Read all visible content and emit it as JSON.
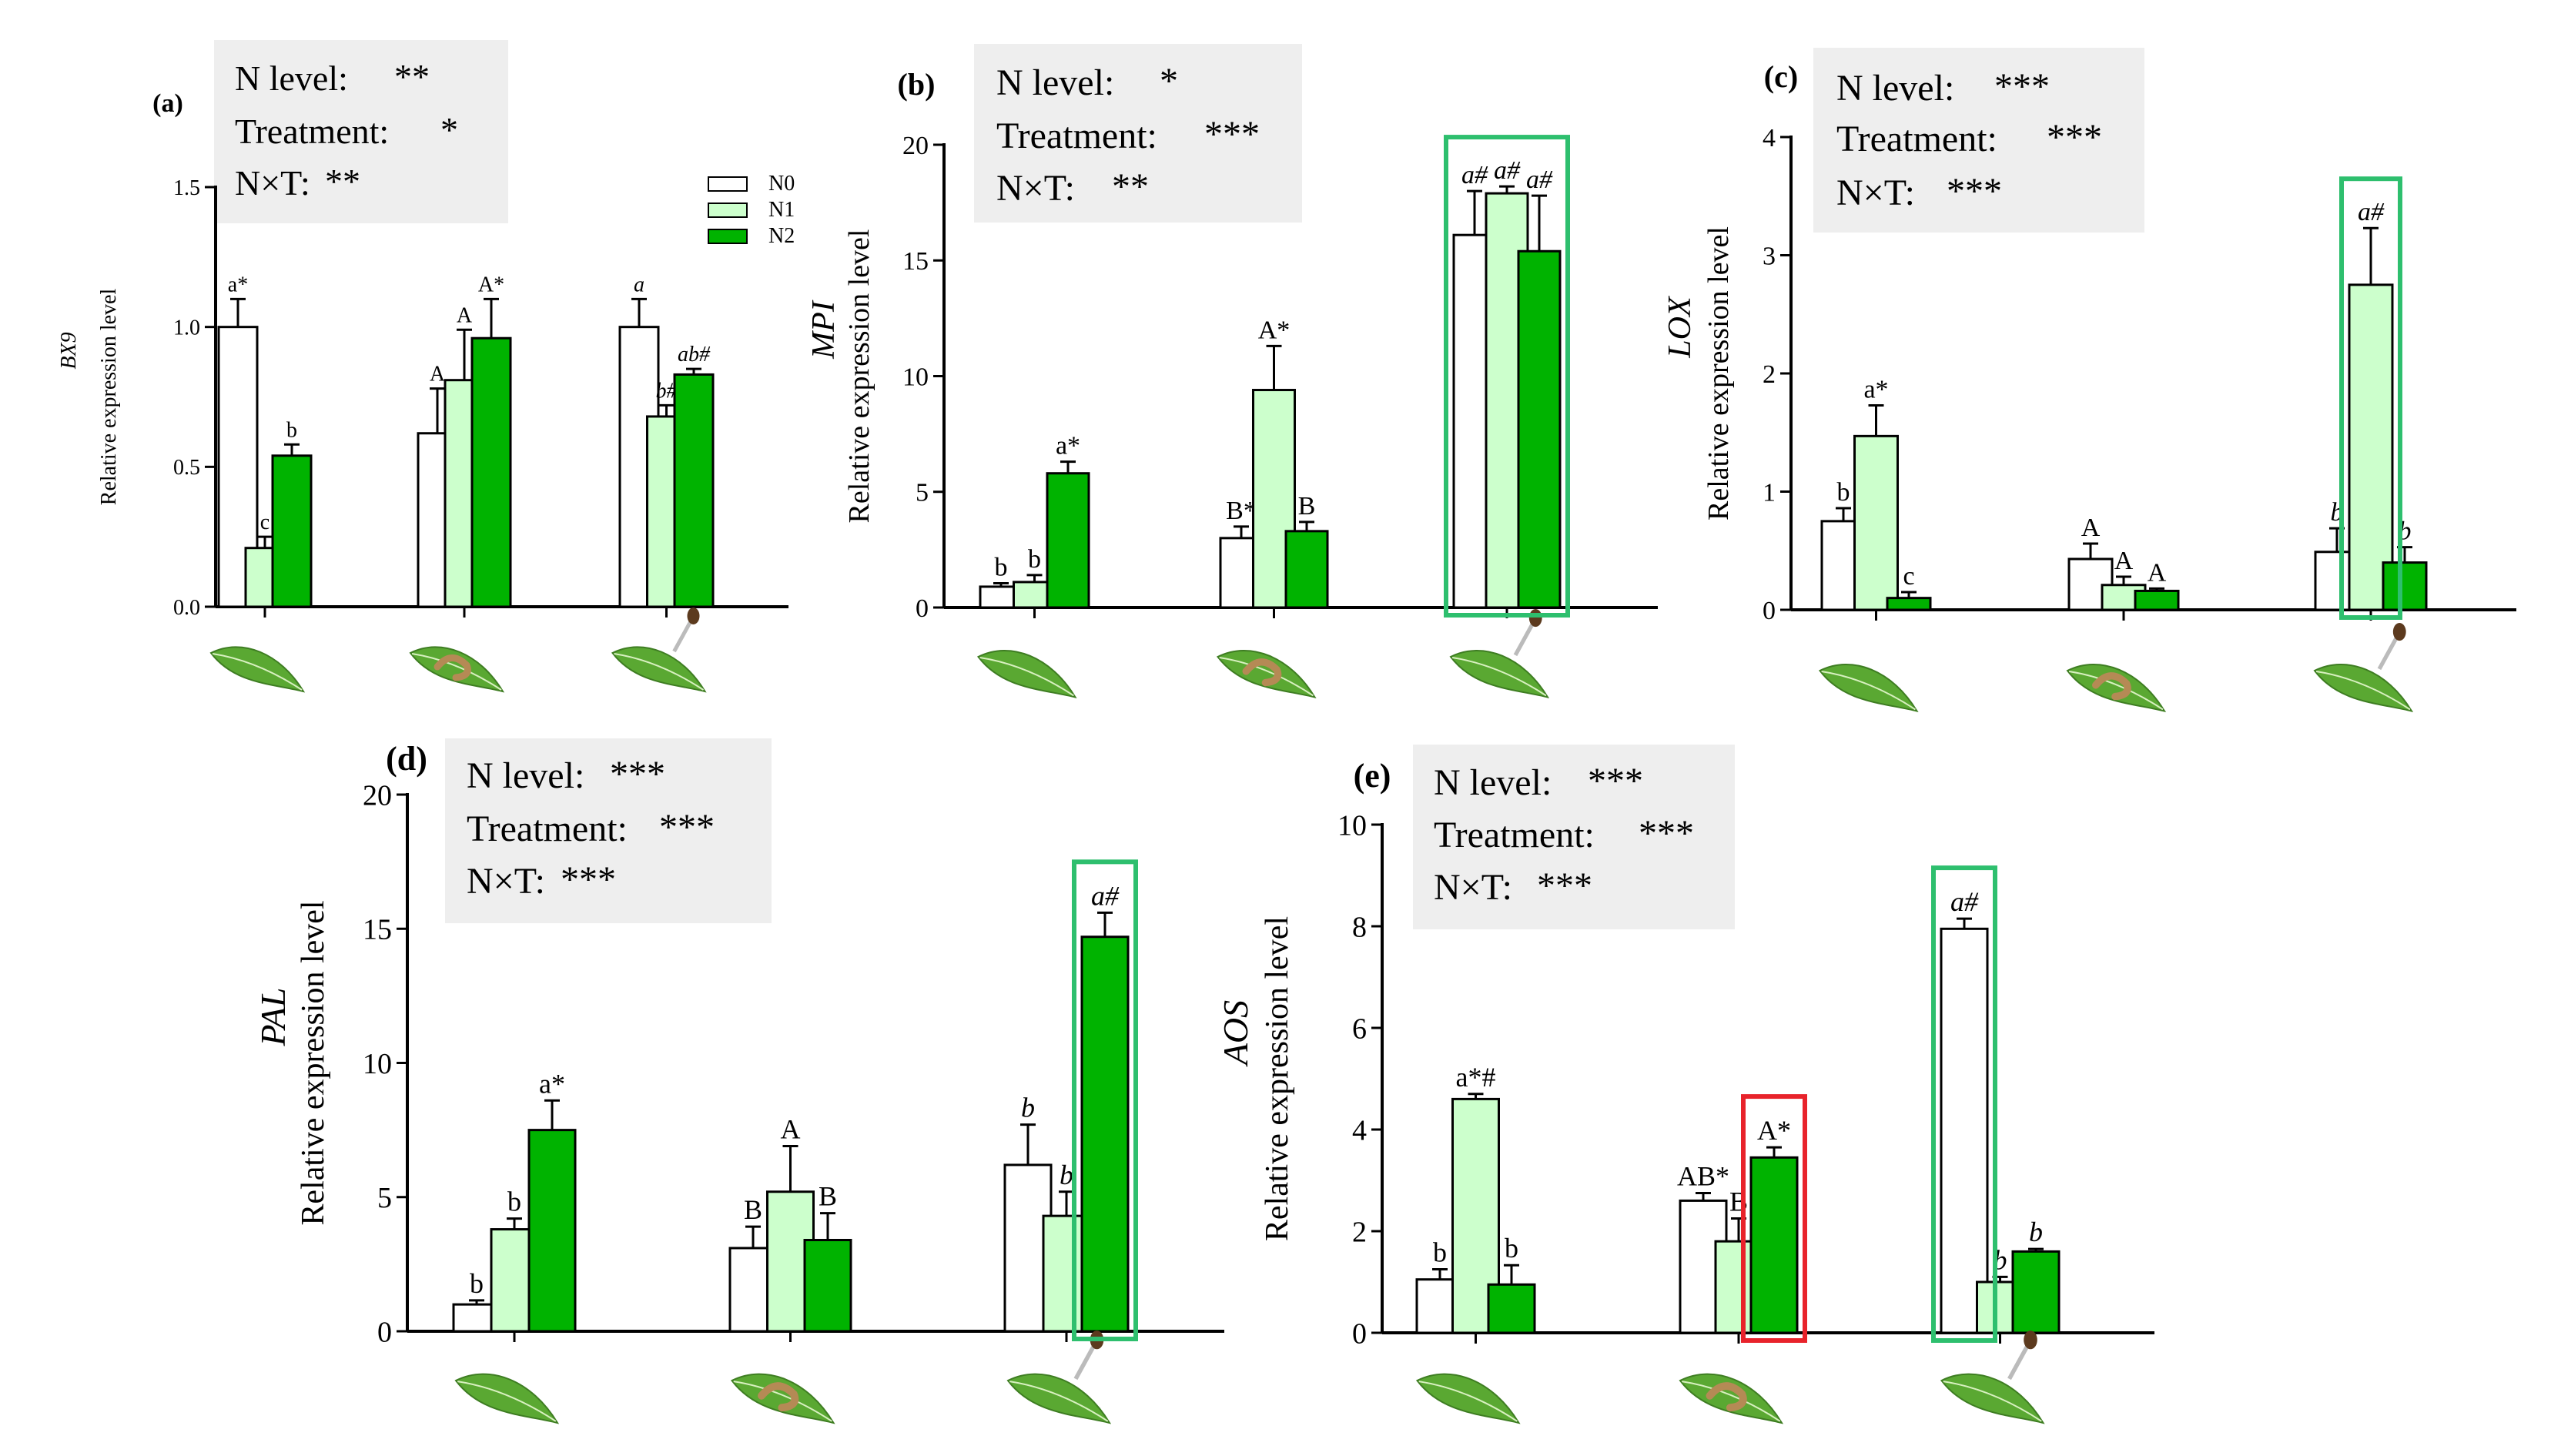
{
  "colors": {
    "N0": "#ffffff",
    "N1": "#ccffcc",
    "N2": "#00b300",
    "stroke": "#000000",
    "box_green": "#2ebf6e",
    "box_red": "#e8232b",
    "stat_bg": "#eeeeee"
  },
  "legend": [
    "N0",
    "N1",
    "N2"
  ],
  "icons": [
    "leaf-icon",
    "leaf-with-caterpillar-icon",
    "leaf-with-dropper-icon"
  ],
  "chart_data": [
    {
      "panel": "(a)",
      "type": "bar",
      "gene": "BX9",
      "ylabel": "Relative expression level",
      "ylim": [
        0,
        1.5
      ],
      "yticks": [
        "0.0",
        "0.5",
        "1.0",
        "1.5"
      ],
      "stats": [
        {
          "label": "N level:",
          "sig": "**"
        },
        {
          "label": "Treatment:",
          "sig": "*"
        },
        {
          "label": "N×T:",
          "sig": "**"
        }
      ],
      "categories": [
        "healthy",
        "caterpillar",
        "dropper"
      ],
      "series": [
        {
          "name": "N0",
          "values": [
            1.0,
            0.62,
            1.0
          ],
          "errors": [
            0.1,
            0.16,
            0.1
          ],
          "letters": [
            "a*",
            "A",
            "a"
          ]
        },
        {
          "name": "N1",
          "values": [
            0.21,
            0.81,
            0.68
          ],
          "errors": [
            0.04,
            0.18,
            0.04
          ],
          "letters": [
            "c",
            "A",
            "b#"
          ]
        },
        {
          "name": "N2",
          "values": [
            0.54,
            0.96,
            0.83
          ],
          "errors": [
            0.04,
            0.14,
            0.02
          ],
          "letters": [
            "b",
            "A*",
            "ab#"
          ]
        }
      ],
      "highlights": []
    },
    {
      "panel": "(b)",
      "type": "bar",
      "gene": "MPI",
      "ylabel": "Relative expression level",
      "ylim": [
        0,
        20
      ],
      "yticks": [
        "0",
        "5",
        "10",
        "15",
        "20"
      ],
      "stats": [
        {
          "label": "N level:",
          "sig": "*"
        },
        {
          "label": "Treatment:",
          "sig": "***"
        },
        {
          "label": "N×T:",
          "sig": "**"
        }
      ],
      "categories": [
        "healthy",
        "caterpillar",
        "dropper"
      ],
      "series": [
        {
          "name": "N0",
          "values": [
            0.9,
            3.0,
            16.1
          ],
          "errors": [
            0.15,
            0.5,
            1.9
          ],
          "letters": [
            "b",
            "B*",
            "a#"
          ]
        },
        {
          "name": "N1",
          "values": [
            1.1,
            9.4,
            17.9
          ],
          "errors": [
            0.3,
            1.9,
            0.3
          ],
          "letters": [
            "b",
            "A*",
            "a#"
          ]
        },
        {
          "name": "N2",
          "values": [
            5.8,
            3.3,
            15.4
          ],
          "errors": [
            0.5,
            0.4,
            2.4
          ],
          "letters": [
            "a*",
            "B",
            "a#"
          ]
        }
      ],
      "highlights": [
        {
          "group": 2,
          "bars": [
            0,
            2
          ],
          "color": "green"
        }
      ]
    },
    {
      "panel": "(c)",
      "type": "bar",
      "gene": "LOX",
      "ylabel": "Relative expression level",
      "ylim": [
        0,
        4
      ],
      "yticks": [
        "0",
        "1",
        "2",
        "3",
        "4"
      ],
      "stats": [
        {
          "label": "N level:",
          "sig": "***"
        },
        {
          "label": "Treatment:",
          "sig": "***"
        },
        {
          "label": "N×T:",
          "sig": "***"
        }
      ],
      "categories": [
        "healthy",
        "caterpillar",
        "dropper"
      ],
      "series": [
        {
          "name": "N0",
          "values": [
            0.75,
            0.43,
            0.49
          ],
          "errors": [
            0.11,
            0.13,
            0.2
          ],
          "letters": [
            "b",
            "A",
            "b"
          ]
        },
        {
          "name": "N1",
          "values": [
            1.47,
            0.21,
            2.75
          ],
          "errors": [
            0.26,
            0.07,
            0.48
          ],
          "letters": [
            "a*",
            "A",
            "a#"
          ]
        },
        {
          "name": "N2",
          "values": [
            0.1,
            0.16,
            0.4
          ],
          "errors": [
            0.05,
            0.02,
            0.13
          ],
          "letters": [
            "c",
            "A",
            "b"
          ]
        }
      ],
      "highlights": [
        {
          "group": 2,
          "bars": [
            1,
            1
          ],
          "color": "green"
        }
      ]
    },
    {
      "panel": "(d)",
      "type": "bar",
      "gene": "PAL",
      "ylabel": "Relative expression level",
      "ylim": [
        0,
        20
      ],
      "yticks": [
        "0",
        "5",
        "10",
        "15",
        "20"
      ],
      "stats": [
        {
          "label": "N level:",
          "sig": "***"
        },
        {
          "label": "Treatment:",
          "sig": "***"
        },
        {
          "label": "N×T:",
          "sig": "***"
        }
      ],
      "categories": [
        "healthy",
        "caterpillar",
        "dropper"
      ],
      "series": [
        {
          "name": "N0",
          "values": [
            1.0,
            3.1,
            6.2
          ],
          "errors": [
            0.15,
            0.8,
            1.5
          ],
          "letters": [
            "b",
            "B",
            "b"
          ]
        },
        {
          "name": "N1",
          "values": [
            3.8,
            5.2,
            4.3
          ],
          "errors": [
            0.4,
            1.7,
            0.9
          ],
          "letters": [
            "b",
            "A",
            "b"
          ]
        },
        {
          "name": "N2",
          "values": [
            7.5,
            3.4,
            14.7
          ],
          "errors": [
            1.1,
            1.0,
            0.9
          ],
          "letters": [
            "a*",
            "B",
            "a#"
          ]
        }
      ],
      "highlights": [
        {
          "group": 2,
          "bars": [
            2,
            2
          ],
          "color": "green"
        }
      ]
    },
    {
      "panel": "(e)",
      "type": "bar",
      "gene": "AOS",
      "ylabel": "Relative expression level",
      "ylim": [
        0,
        10
      ],
      "yticks": [
        "0",
        "2",
        "4",
        "6",
        "8",
        "10"
      ],
      "stats": [
        {
          "label": "N level:",
          "sig": "***"
        },
        {
          "label": "Treatment:",
          "sig": "***"
        },
        {
          "label": "N×T:",
          "sig": "***"
        }
      ],
      "categories": [
        "healthy",
        "caterpillar",
        "dropper"
      ],
      "series": [
        {
          "name": "N0",
          "values": [
            1.05,
            2.6,
            7.95
          ],
          "errors": [
            0.2,
            0.15,
            0.2
          ],
          "letters": [
            "b",
            "AB*",
            "a#"
          ]
        },
        {
          "name": "N1",
          "values": [
            4.6,
            1.8,
            1.0
          ],
          "errors": [
            0.1,
            0.45,
            0.1
          ],
          "letters": [
            "a*#",
            "B",
            "b"
          ]
        },
        {
          "name": "N2",
          "values": [
            0.95,
            3.45,
            1.6
          ],
          "errors": [
            0.38,
            0.2,
            0.05
          ],
          "letters": [
            "b",
            "A*",
            "b"
          ]
        }
      ],
      "highlights": [
        {
          "group": 1,
          "bars": [
            2,
            2
          ],
          "color": "red"
        },
        {
          "group": 2,
          "bars": [
            0,
            0
          ],
          "color": "green"
        }
      ]
    }
  ]
}
